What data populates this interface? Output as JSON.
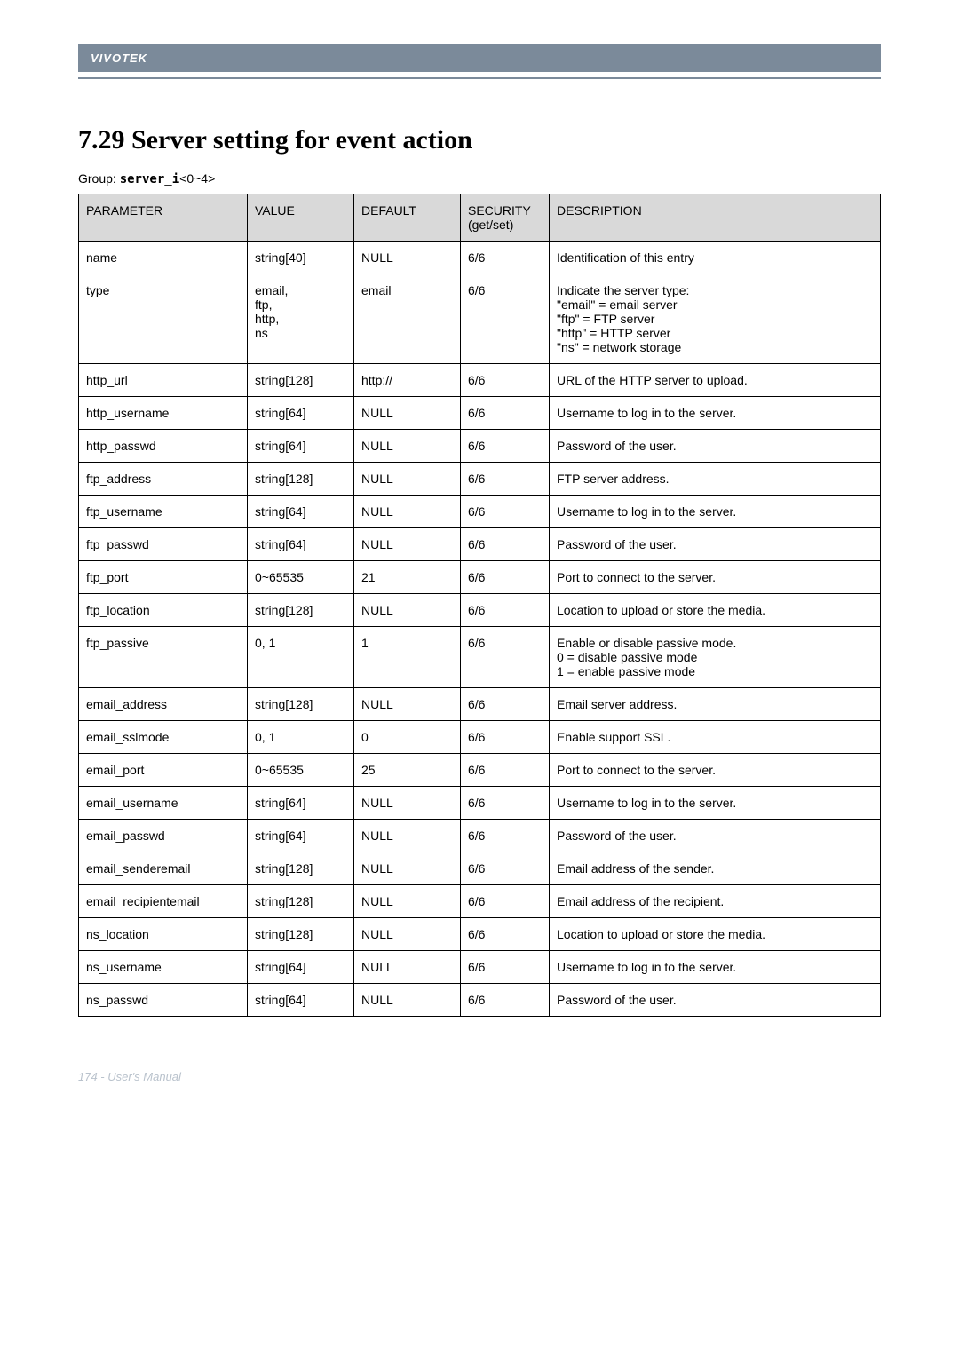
{
  "header": {
    "brand": "VIVOTEK"
  },
  "section": {
    "title": "7.29 Server setting for event action",
    "group_prefix": "Group: ",
    "group_name": "server_i",
    "group_suffix": "<0~4>"
  },
  "table": {
    "columns": [
      "PARAMETER",
      "VALUE",
      "DEFAULT",
      "SECURITY (get/set)",
      "DESCRIPTION"
    ],
    "header_bg": "#d9d9d9",
    "border_color": "#000000",
    "rows": [
      {
        "param": "name",
        "value": "string[40]",
        "default": "NULL",
        "security": "6/6",
        "desc": [
          "Identification of this entry"
        ]
      },
      {
        "param": "type",
        "value": "email,\nftp,\nhttp,\nns",
        "default": "email",
        "security": "6/6",
        "desc": [
          "Indicate the server type:",
          "\"email\" = email server",
          "\"ftp\" = FTP server",
          "\"http\" = HTTP server",
          "\"ns\" = network storage"
        ]
      },
      {
        "param": "http_url",
        "value": "string[128]",
        "default": "http://",
        "security": "6/6",
        "desc": [
          "URL of the HTTP server to upload."
        ]
      },
      {
        "param": "http_username",
        "value": "string[64]",
        "default": "NULL",
        "security": "6/6",
        "desc": [
          "Username to log in to the server."
        ]
      },
      {
        "param": "http_passwd",
        "value": "string[64]",
        "default": "NULL",
        "security": "6/6",
        "desc": [
          "Password of the user."
        ]
      },
      {
        "param": "ftp_address",
        "value": "string[128]",
        "default": "NULL",
        "security": "6/6",
        "desc": [
          "FTP server address."
        ]
      },
      {
        "param": "ftp_username",
        "value": "string[64]",
        "default": "NULL",
        "security": "6/6",
        "desc": [
          "Username to log in to the server."
        ]
      },
      {
        "param": "ftp_passwd",
        "value": "string[64]",
        "default": "NULL",
        "security": "6/6",
        "desc": [
          "Password of the user."
        ]
      },
      {
        "param": "ftp_port",
        "value": "0~65535",
        "default": "21",
        "security": "6/6",
        "desc": [
          "Port to connect to the server."
        ]
      },
      {
        "param": "ftp_location",
        "value": "string[128]",
        "default": "NULL",
        "security": "6/6",
        "desc": [
          "Location to upload or store the media."
        ]
      },
      {
        "param": "ftp_passive",
        "value": "0, 1",
        "default": "1",
        "security": "6/6",
        "desc": [
          "Enable or disable passive mode.",
          "0 = disable passive mode",
          "1 = enable passive mode"
        ]
      },
      {
        "param": "email_address",
        "value": "string[128]",
        "default": "NULL",
        "security": "6/6",
        "desc": [
          "Email server address."
        ]
      },
      {
        "param": "email_sslmode",
        "value": "0, 1",
        "default": "0",
        "security": "6/6",
        "desc": [
          "Enable support SSL."
        ]
      },
      {
        "param": "email_port",
        "value": "0~65535",
        "default": "25",
        "security": "6/6",
        "desc": [
          "Port to connect to the server."
        ]
      },
      {
        "param": "email_username",
        "value": "string[64]",
        "default": "NULL",
        "security": "6/6",
        "desc": [
          "Username to log in to the server."
        ]
      },
      {
        "param": "email_passwd",
        "value": "string[64]",
        "default": "NULL",
        "security": "6/6",
        "desc": [
          "Password of the user."
        ]
      },
      {
        "param": "email_senderemail",
        "value": "string[128]",
        "default": "NULL",
        "security": "6/6",
        "desc": [
          "Email address of the sender."
        ]
      },
      {
        "param": "email_recipientemail",
        "value": "string[128]",
        "default": "NULL",
        "security": "6/6",
        "desc": [
          "Email address of the recipient."
        ]
      },
      {
        "param": "ns_location",
        "value": "string[128]",
        "default": "NULL",
        "security": "6/6",
        "desc": [
          "Location to upload or store the media."
        ]
      },
      {
        "param": "ns_username",
        "value": "string[64]",
        "default": "NULL",
        "security": "6/6",
        "desc": [
          "Username to log in to the server."
        ]
      },
      {
        "param": "ns_passwd",
        "value": "string[64]",
        "default": "NULL",
        "security": "6/6",
        "desc": [
          "Password of the user."
        ]
      }
    ]
  },
  "footer": {
    "text": "174 - User's Manual"
  }
}
